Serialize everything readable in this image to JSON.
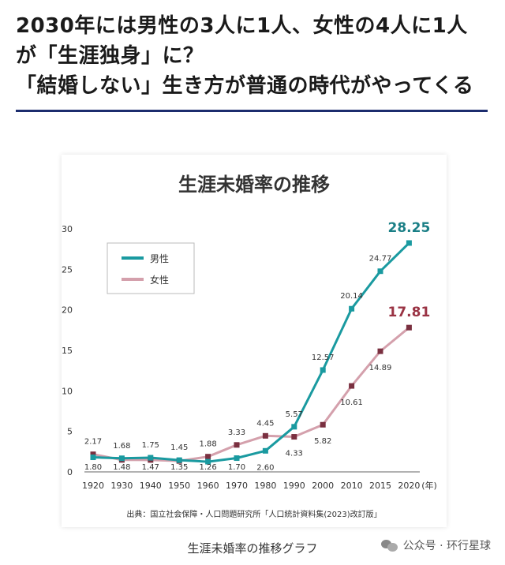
{
  "article": {
    "headline_lines": [
      "2030年には男性の3人に1人、女性の4人に1人",
      "が「生涯独身」に？",
      "「結婚しない」生き方が普通の時代がやってくる"
    ]
  },
  "chart_data": {
    "type": "line",
    "title": "生涯未婚率の推移",
    "y_unit": "(%)",
    "x_unit": "(年)",
    "categories": [
      "1920",
      "1930",
      "1940",
      "1950",
      "1960",
      "1970",
      "1980",
      "1990",
      "2000",
      "2010",
      "2015",
      "2020"
    ],
    "ylim": [
      0,
      30
    ],
    "yticks": [
      0,
      5,
      10,
      15,
      20,
      25,
      30
    ],
    "grid": false,
    "legend_position": "top-left",
    "series": [
      {
        "name": "男性",
        "color": "#1a9aa0",
        "values": [
          1.8,
          1.68,
          1.75,
          1.45,
          1.26,
          1.7,
          2.6,
          5.57,
          12.57,
          20.14,
          24.77,
          28.25
        ],
        "labels": [
          "1.80",
          "1.68",
          "1.75",
          "1.45",
          "1.26",
          "1.70",
          "2.60",
          "5.57",
          "12.57",
          "20.14",
          "24.77",
          "28.25"
        ]
      },
      {
        "name": "女性",
        "color": "#d4a0ac",
        "marker_color": "#7a3040",
        "values": [
          2.17,
          1.48,
          1.47,
          1.35,
          1.88,
          3.33,
          4.45,
          4.33,
          5.82,
          10.61,
          14.89,
          17.81
        ],
        "labels": [
          "2.17",
          "1.48",
          "1.47",
          "1.35",
          "1.88",
          "3.33",
          "4.45",
          "4.33",
          "5.82",
          "10.61",
          "14.89",
          "17.81"
        ]
      }
    ],
    "source": "出典：国立社会保障・人口問題研究所「人口統計資料集(2023)改訂版」"
  },
  "caption": "生涯未婚率の推移グラフ",
  "watermark": "公众号 · 环行星球"
}
